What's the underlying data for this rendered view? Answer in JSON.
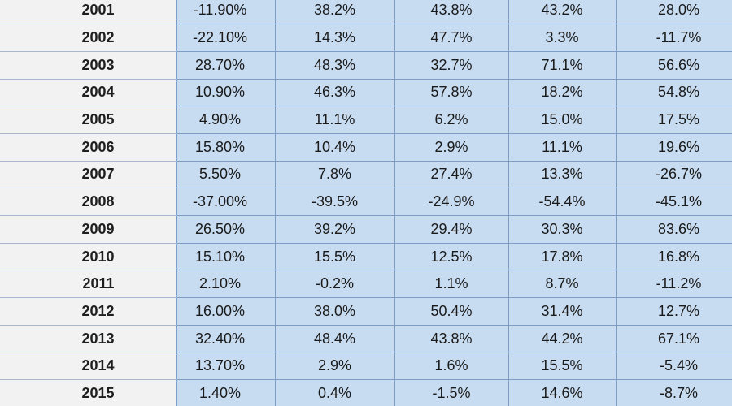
{
  "table": {
    "rows": [
      {
        "year": "2001",
        "values": [
          "-11.90%",
          "38.2%",
          "43.8%",
          "43.2%",
          "28.0%"
        ]
      },
      {
        "year": "2002",
        "values": [
          "-22.10%",
          "14.3%",
          "47.7%",
          "3.3%",
          "-11.7%"
        ]
      },
      {
        "year": "2003",
        "values": [
          "28.70%",
          "48.3%",
          "32.7%",
          "71.1%",
          "56.6%"
        ]
      },
      {
        "year": "2004",
        "values": [
          "10.90%",
          "46.3%",
          "57.8%",
          "18.2%",
          "54.8%"
        ]
      },
      {
        "year": "2005",
        "values": [
          "4.90%",
          "11.1%",
          "6.2%",
          "15.0%",
          "17.5%"
        ]
      },
      {
        "year": "2006",
        "values": [
          "15.80%",
          "10.4%",
          "2.9%",
          "11.1%",
          "19.6%"
        ]
      },
      {
        "year": "2007",
        "values": [
          "5.50%",
          "7.8%",
          "27.4%",
          "13.3%",
          "-26.7%"
        ]
      },
      {
        "year": "2008",
        "values": [
          "-37.00%",
          "-39.5%",
          "-24.9%",
          "-54.4%",
          "-45.1%"
        ]
      },
      {
        "year": "2009",
        "values": [
          "26.50%",
          "39.2%",
          "29.4%",
          "30.3%",
          "83.6%"
        ]
      },
      {
        "year": "2010",
        "values": [
          "15.10%",
          "15.5%",
          "12.5%",
          "17.8%",
          "16.8%"
        ]
      },
      {
        "year": "2011",
        "values": [
          "2.10%",
          "-0.2%",
          "1.1%",
          "8.7%",
          "-11.2%"
        ]
      },
      {
        "year": "2012",
        "values": [
          "16.00%",
          "38.0%",
          "50.4%",
          "31.4%",
          "12.7%"
        ]
      },
      {
        "year": "2013",
        "values": [
          "32.40%",
          "48.4%",
          "43.8%",
          "44.2%",
          "67.1%"
        ]
      },
      {
        "year": "2014",
        "values": [
          "13.70%",
          "2.9%",
          "1.6%",
          "15.5%",
          "-5.4%"
        ]
      },
      {
        "year": "2015",
        "values": [
          "1.40%",
          "0.4%",
          "-1.5%",
          "14.6%",
          "-8.7%"
        ]
      }
    ]
  }
}
